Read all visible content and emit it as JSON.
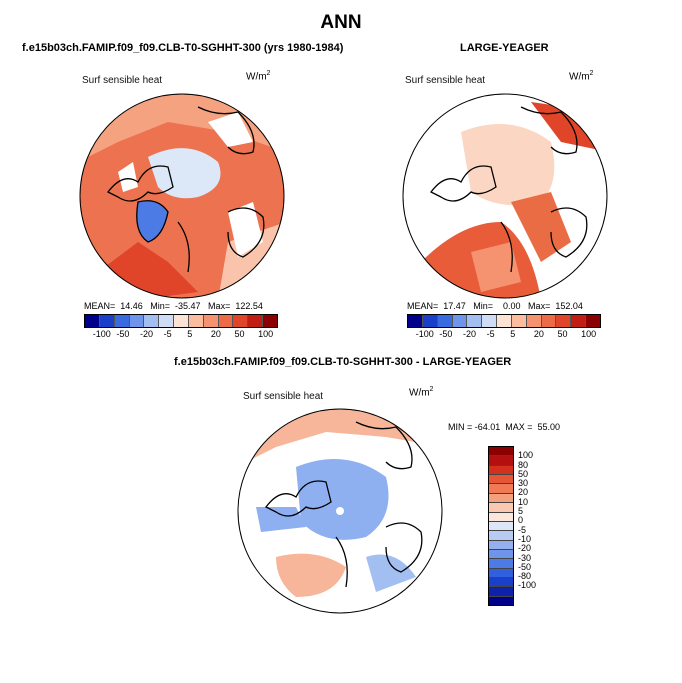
{
  "title": "ANN",
  "case1_title": "f.e15b03ch.FAMIP.f09_f09.CLB-T0-SGHHT-300 (yrs 1980-1984)",
  "case2_title": "LARGE-YEAGER",
  "diff_title": "f.e15b03ch.FAMIP.f09_f09.CLB-T0-SGHHT-300 - LARGE-YEAGER",
  "variable_label": "Surf sensible heat",
  "units": "W/m",
  "units_exp": "2",
  "panel1_stats": "MEAN=  14.46   Min=  -35.47   Max=  122.54",
  "panel2_stats": "MEAN=  17.47   Min=    0.00   Max=  152.04",
  "diff_stats": "MIN = -64.01  MAX =  55.00",
  "colors": {
    "horizontal_bar": [
      "#00008b",
      "#1a3fc9",
      "#3a6ae0",
      "#6f95ea",
      "#a3bff2",
      "#cfdcf6",
      "#fde3d3",
      "#fbbd9e",
      "#f59370",
      "#ec6a45",
      "#e0452a",
      "#c21d14",
      "#8b0000"
    ],
    "vertical_bar": [
      "#8b0000",
      "#b50f0f",
      "#d3301e",
      "#e65535",
      "#ef7a55",
      "#f5a07c",
      "#fac8b0",
      "#fae6da",
      "#dde6f8",
      "#b8cbf2",
      "#95b0ee",
      "#6f95ea",
      "#4c7be6",
      "#3060dd",
      "#1a3fc9",
      "#0d22a8",
      "#00008b"
    ],
    "ocean_pos": "#ea6c45",
    "ice_neutral": "#dce8f8",
    "diff_neg": "#8fb0f0",
    "diff_pos": "#f7b59a"
  },
  "hbar_ticks": [
    "-100",
    "-50",
    "-20",
    "-5",
    "5",
    "20",
    "50",
    "100"
  ],
  "vbar_ticks": [
    "100",
    "80",
    "50",
    "30",
    "20",
    "10",
    "5",
    "0",
    "-5",
    "-10",
    "-20",
    "-30",
    "-50",
    "-80",
    "-100"
  ]
}
